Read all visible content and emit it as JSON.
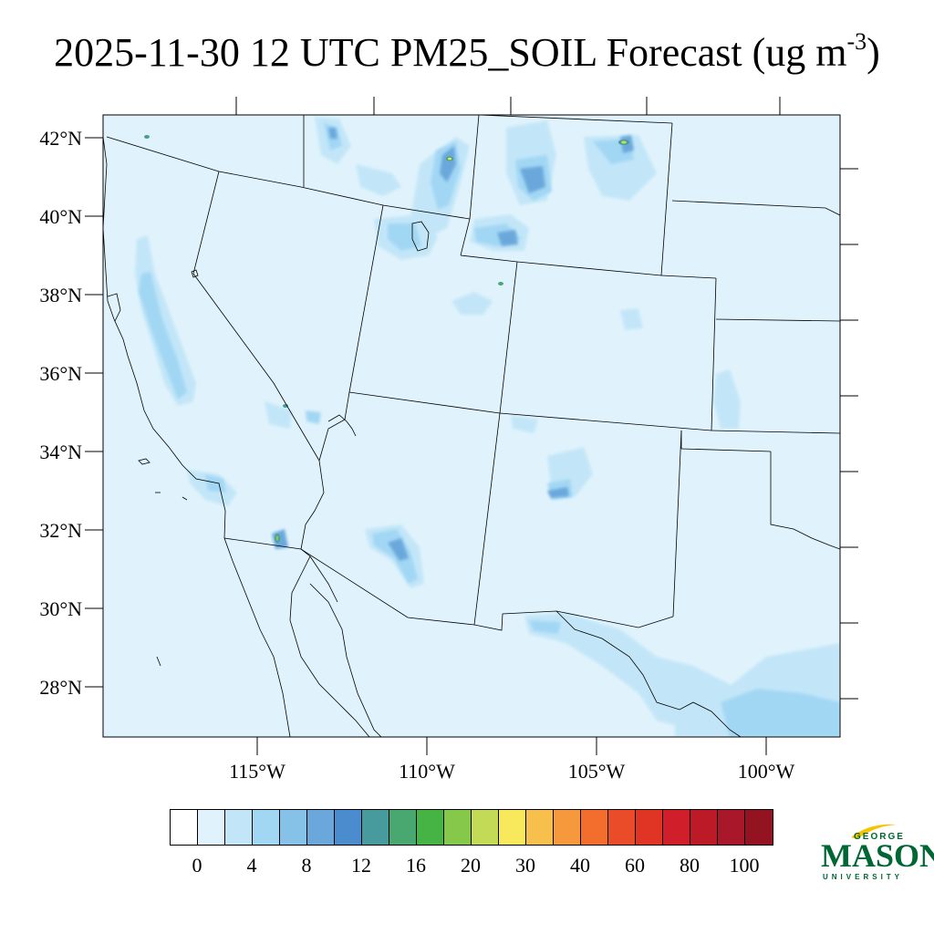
{
  "title": {
    "main": "2025-11-30 12 UTC PM25_SOIL Forecast (ug m",
    "exponent": "-3",
    "close": ")"
  },
  "map": {
    "lat_labels": [
      "42°N",
      "40°N",
      "38°N",
      "36°N",
      "34°N",
      "32°N",
      "30°N",
      "28°N"
    ],
    "lon_labels": [
      "115°W",
      "110°W",
      "105°W",
      "100°W"
    ]
  },
  "colorbar": {
    "colors": [
      "#ffffff",
      "#e0f3fc",
      "#c2e6f8",
      "#a2d7f4",
      "#86c1e7",
      "#6aa8dc",
      "#4a8ccd",
      "#479b9c",
      "#48a870",
      "#46b445",
      "#86c84a",
      "#c3da56",
      "#f7e85c",
      "#f7bf4b",
      "#f5993c",
      "#f36e2c",
      "#ea4b28",
      "#e03524",
      "#d01f2a",
      "#bc1a26",
      "#a9172a",
      "#931420"
    ],
    "tick_labels": [
      "0",
      "4",
      "8",
      "12",
      "16",
      "20",
      "30",
      "40",
      "60",
      "80",
      "100"
    ]
  },
  "logo": {
    "top": "GEORGE",
    "mid": "MASON",
    "bot": "UNIVERSITY"
  }
}
